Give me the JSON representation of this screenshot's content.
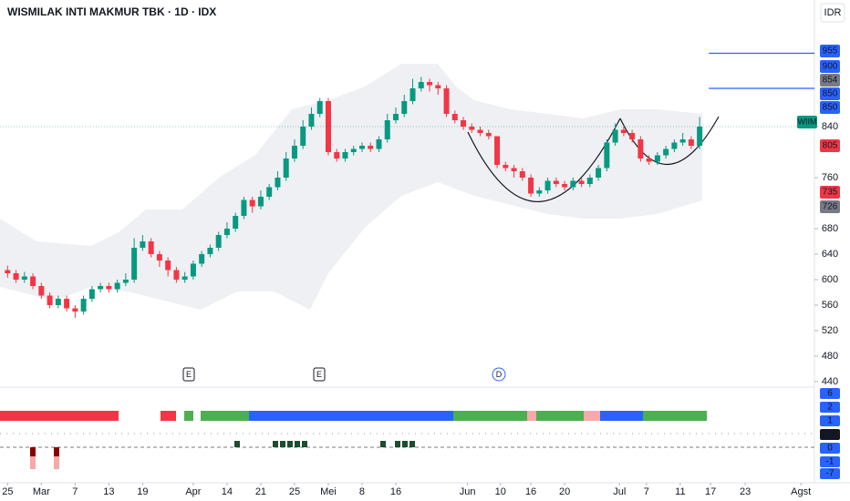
{
  "chart_data": {
    "type": "candlestick",
    "title": "WISMILAK INTI MAKMUR TBK · 1D · IDX",
    "currency": "IDR",
    "up_color": "#089981",
    "down_color": "#f23645",
    "open": [
      615,
      610,
      600,
      605,
      590,
      575,
      560,
      570,
      555,
      550,
      570,
      585,
      590,
      585,
      595,
      600,
      650,
      660,
      640,
      630,
      615,
      600,
      605,
      625,
      640,
      650,
      670,
      680,
      700,
      725,
      715,
      730,
      745,
      760,
      790,
      810,
      840,
      860,
      880,
      800,
      790,
      800,
      805,
      810,
      805,
      820,
      850,
      860,
      880,
      900,
      910,
      905,
      900,
      860,
      850,
      840,
      835,
      830,
      825,
      780,
      775,
      770,
      760,
      735,
      740,
      755,
      750,
      745,
      755,
      750,
      760,
      775,
      815,
      835,
      830,
      820,
      790,
      785,
      795,
      805,
      815,
      820,
      810
    ],
    "high": [
      622,
      615,
      612,
      610,
      595,
      580,
      575,
      575,
      560,
      575,
      590,
      595,
      595,
      600,
      610,
      665,
      670,
      665,
      645,
      635,
      620,
      612,
      630,
      645,
      655,
      675,
      690,
      705,
      730,
      730,
      740,
      750,
      770,
      800,
      820,
      850,
      870,
      885,
      885,
      805,
      805,
      810,
      815,
      815,
      825,
      860,
      870,
      890,
      915,
      918,
      915,
      910,
      905,
      865,
      855,
      845,
      840,
      835,
      825,
      785,
      780,
      775,
      765,
      745,
      760,
      760,
      755,
      760,
      760,
      765,
      780,
      820,
      845,
      840,
      835,
      825,
      795,
      800,
      810,
      820,
      830,
      825,
      855
    ],
    "low": [
      603,
      595,
      595,
      585,
      570,
      555,
      555,
      550,
      540,
      545,
      565,
      580,
      580,
      580,
      590,
      595,
      645,
      635,
      620,
      605,
      595,
      595,
      600,
      620,
      635,
      645,
      665,
      675,
      695,
      705,
      710,
      725,
      740,
      755,
      785,
      805,
      835,
      855,
      795,
      785,
      785,
      795,
      800,
      800,
      800,
      815,
      845,
      855,
      875,
      895,
      895,
      890,
      855,
      845,
      835,
      830,
      825,
      820,
      775,
      770,
      760,
      755,
      730,
      730,
      735,
      745,
      740,
      740,
      745,
      745,
      755,
      770,
      810,
      825,
      815,
      785,
      780,
      780,
      790,
      800,
      810,
      805,
      805
    ],
    "close": [
      610,
      600,
      605,
      590,
      575,
      560,
      570,
      555,
      550,
      570,
      585,
      590,
      585,
      595,
      600,
      650,
      660,
      640,
      630,
      615,
      600,
      605,
      625,
      640,
      650,
      670,
      680,
      700,
      725,
      715,
      730,
      745,
      760,
      790,
      810,
      840,
      860,
      880,
      800,
      790,
      800,
      805,
      810,
      805,
      820,
      850,
      860,
      880,
      900,
      910,
      905,
      900,
      860,
      850,
      840,
      835,
      830,
      825,
      780,
      775,
      770,
      760,
      735,
      740,
      755,
      750,
      745,
      755,
      750,
      760,
      775,
      815,
      835,
      830,
      820,
      790,
      785,
      795,
      805,
      815,
      820,
      810,
      840
    ],
    "xlim": [
      -0.9,
      95.6
    ],
    "xticks": [
      {
        "value": 0,
        "label": "25"
      },
      {
        "value": 4,
        "label": "Mar"
      },
      {
        "value": 8,
        "label": "7"
      },
      {
        "value": 12,
        "label": "13"
      },
      {
        "value": 16,
        "label": "19"
      },
      {
        "value": 22,
        "label": "Apr"
      },
      {
        "value": 26,
        "label": "14"
      },
      {
        "value": 30,
        "label": "21"
      },
      {
        "value": 34,
        "label": "25"
      },
      {
        "value": 38,
        "label": "Mei"
      },
      {
        "value": 42,
        "label": "8"
      },
      {
        "value": 46,
        "label": "16"
      },
      {
        "value": 54.5,
        "label": "Jun"
      },
      {
        "value": 58.4,
        "label": "10"
      },
      {
        "value": 62,
        "label": "16"
      },
      {
        "value": 66,
        "label": "20"
      },
      {
        "value": 72.5,
        "label": "Jul"
      },
      {
        "value": 75.7,
        "label": "7"
      },
      {
        "value": 79.7,
        "label": "11"
      },
      {
        "value": 83.3,
        "label": "17"
      },
      {
        "value": 87.4,
        "label": "23"
      },
      {
        "value": 94,
        "label": "Agst"
      }
    ],
    "ylim": [
      431.4,
      1038.6
    ],
    "yticks": [
      440,
      480,
      520,
      560,
      600,
      640,
      680,
      760,
      840
    ],
    "price_labels": [
      {
        "value": 955,
        "color": "#2962ff"
      },
      {
        "value": 900,
        "color": "#2962ff"
      },
      {
        "value": 854,
        "color": "#787b86"
      },
      {
        "value": 850,
        "color": "#2962ff"
      },
      {
        "value": 850,
        "color": "#2962ff"
      },
      {
        "label": "WIIM",
        "value": 840,
        "color": "#089981"
      },
      {
        "value": 805,
        "color": "#f23645"
      },
      {
        "value": 735,
        "color": "#f23645"
      },
      {
        "value": 726,
        "color": "#787b86"
      }
    ],
    "markers": [
      "E",
      "E",
      "D"
    ],
    "indicator_labels": [
      {
        "value": 6,
        "color": "#2962ff"
      },
      {
        "value": 2,
        "color": "#2962ff"
      },
      {
        "value": 1,
        "color": "#2962ff"
      },
      {
        "value": 0,
        "color": "#131722"
      },
      {
        "value": 0,
        "color": "#2962ff"
      },
      {
        "value": -1,
        "color": "#2962ff"
      },
      {
        "value": -7,
        "color": "#2962ff"
      }
    ]
  }
}
